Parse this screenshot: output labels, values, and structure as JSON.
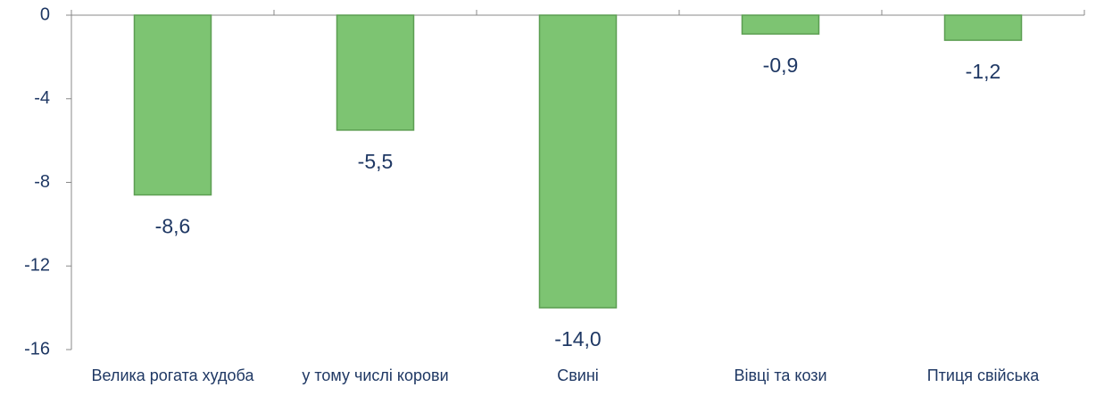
{
  "chart_data": {
    "type": "bar",
    "categories": [
      "Велика рогата худоба",
      "у тому числі корови",
      "Свині",
      "Вівці та кози",
      "Птиця свійська"
    ],
    "values": [
      -8.6,
      -5.5,
      -14.0,
      -0.9,
      -1.2
    ],
    "value_labels": [
      "-8,6",
      "-5,5",
      "-14,0",
      "-0,9",
      "-1,2"
    ],
    "color": "#7dc472",
    "ylim": [
      -16,
      0
    ],
    "yticks": [
      0,
      -4,
      -8,
      -12,
      -16
    ],
    "grid": false
  }
}
